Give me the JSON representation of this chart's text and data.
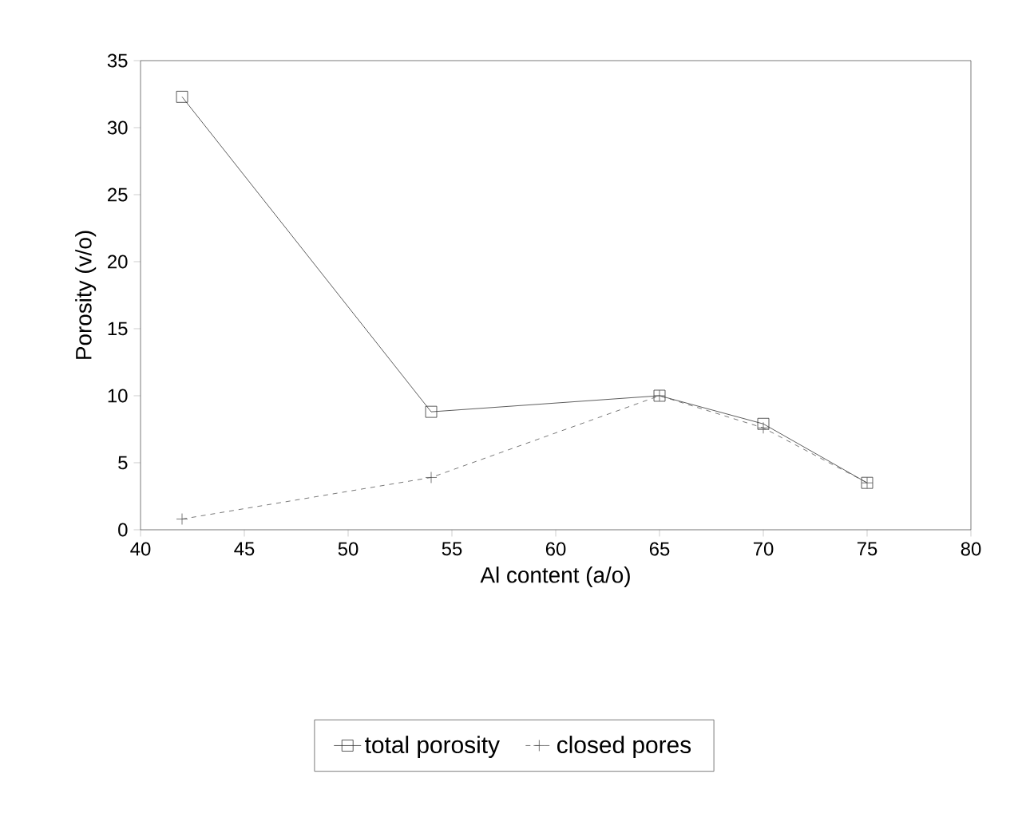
{
  "chart_data": {
    "type": "line",
    "xlabel": "Al content (a/o)",
    "ylabel": "Porosity (v/o)",
    "xlim": [
      40,
      80
    ],
    "xticks": [
      40,
      45,
      50,
      55,
      60,
      65,
      70,
      75,
      80
    ],
    "ylim": [
      0,
      35
    ],
    "yticks": [
      0,
      5,
      10,
      15,
      20,
      25,
      30,
      35
    ],
    "legend": "bottom",
    "grid": false,
    "series": [
      {
        "name": "total porosity",
        "color": "#333333",
        "x": [
          42,
          54,
          65,
          70,
          75
        ],
        "values": [
          32.3,
          8.8,
          10,
          7.9,
          3.5
        ],
        "marker": "square",
        "line_style": "solid"
      },
      {
        "name": "closed pores",
        "color": "#555555",
        "x": [
          42,
          54,
          65,
          70,
          75
        ],
        "values": [
          0.8,
          3.9,
          10,
          7.6,
          3.5
        ],
        "marker": "cross",
        "line_style": "dashed"
      }
    ]
  }
}
